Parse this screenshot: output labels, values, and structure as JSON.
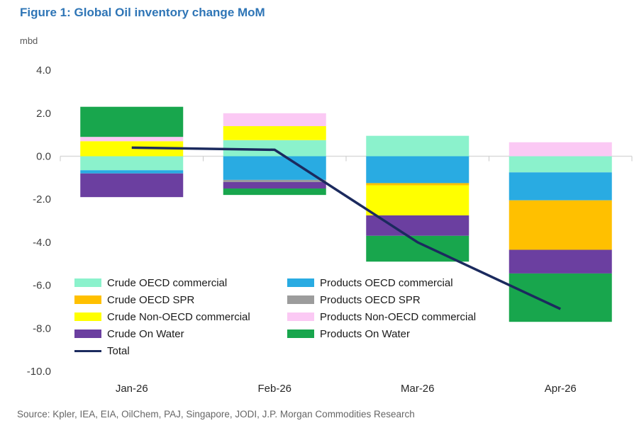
{
  "figure": {
    "title": "Figure 1: Global Oil inventory change MoM",
    "unit_label": "mbd",
    "source": "Source: Kpler, IEA, EIA, OilChem, PAJ, Singapore, JODI, J.P. Morgan Commodities Research"
  },
  "colors": {
    "title_text": "#2E75B6",
    "axis_text": "#404040",
    "unit_text": "#595959",
    "source_text": "#666666",
    "zero_line": "#D9D9D9",
    "tick_mark": "#C9C9C9"
  },
  "chart_data": {
    "type": "bar",
    "subtype": "stacked-bars-with-total-line",
    "title": "Figure 1: Global Oil inventory change MoM",
    "xlabel": "",
    "ylabel": "mbd",
    "categories": [
      "Jan-26",
      "Feb-26",
      "Mar-26",
      "Apr-26"
    ],
    "y_tick_labels": [
      "4.0",
      "2.0",
      "0.0",
      "-2.0",
      "-4.0",
      "-6.0",
      "-8.0",
      "-10.0"
    ],
    "ylim": [
      -10.5,
      4.5
    ],
    "grid": "zero-line-only",
    "legend_position": "bottom-left-two-columns",
    "series": [
      {
        "name": "Crude OECD commercial",
        "color": "#8BF2CC",
        "values": [
          -0.65,
          0.75,
          0.95,
          -0.75
        ]
      },
      {
        "name": "Products OECD commercial",
        "color": "#29ABE2",
        "values": [
          -0.15,
          -1.1,
          -1.25,
          -1.3
        ]
      },
      {
        "name": "Crude OECD SPR",
        "color": "#FFC000",
        "values": [
          0.0,
          0.0,
          -0.1,
          -2.3
        ]
      },
      {
        "name": "Products OECD SPR",
        "color": "#9C9C9C",
        "values": [
          0.0,
          -0.1,
          0.0,
          0.0
        ]
      },
      {
        "name": "Crude Non-OECD commercial",
        "color": "#FFFF00",
        "values": [
          0.7,
          0.65,
          -1.4,
          0.0
        ]
      },
      {
        "name": "Products Non-OECD commercial",
        "color": "#FBC9F4",
        "values": [
          0.2,
          0.6,
          0.0,
          0.65
        ]
      },
      {
        "name": "Crude On Water",
        "color": "#6B3FA0",
        "values": [
          -1.1,
          -0.3,
          -0.95,
          -1.1
        ]
      },
      {
        "name": "Products On Water",
        "color": "#18A64D",
        "values": [
          1.4,
          -0.3,
          -1.2,
          -2.25
        ]
      }
    ],
    "total_line": {
      "name": "Total",
      "color": "#1B2A5E",
      "values": [
        0.4,
        0.3,
        -4.0,
        -7.1
      ]
    },
    "legend_columns": {
      "left": [
        "Crude OECD commercial",
        "Crude OECD SPR",
        "Crude Non-OECD commercial",
        "Crude On Water",
        "Total"
      ],
      "right": [
        "Products OECD commercial",
        "Products OECD SPR",
        "Products Non-OECD commercial",
        "Products On Water"
      ]
    }
  }
}
